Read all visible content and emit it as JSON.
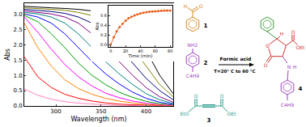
{
  "chart_data": [
    {
      "type": "line",
      "x_label": "Wavelength (nm)",
      "y_label": "Abs",
      "x": [
        265,
        280,
        295,
        310,
        325,
        340,
        355,
        370,
        385,
        400,
        415,
        430
      ],
      "series": [
        {
          "color": "#000000",
          "values": [
            3.25,
            3.22,
            3.2,
            3.18,
            3.15,
            3.1,
            3.0,
            2.8,
            2.4,
            1.8,
            1.0,
            0.4
          ]
        },
        {
          "color": "#808000",
          "values": [
            3.2,
            3.18,
            3.15,
            3.12,
            3.05,
            2.95,
            2.75,
            2.4,
            1.9,
            1.3,
            0.7,
            0.3
          ]
        },
        {
          "color": "#000080",
          "values": [
            3.15,
            3.12,
            3.08,
            3.02,
            2.9,
            2.7,
            2.35,
            1.9,
            1.4,
            0.9,
            0.5,
            0.2
          ]
        },
        {
          "color": "#800080",
          "values": [
            3.1,
            3.05,
            3.0,
            2.9,
            2.7,
            2.35,
            1.9,
            1.45,
            1.0,
            0.6,
            0.3,
            0.12
          ]
        },
        {
          "color": "#008080",
          "values": [
            3.05,
            3.0,
            2.9,
            2.7,
            2.35,
            1.9,
            1.45,
            1.05,
            0.7,
            0.4,
            0.2,
            0.08
          ]
        },
        {
          "color": "#0000ff",
          "values": [
            3.0,
            2.9,
            2.7,
            2.35,
            1.9,
            1.45,
            1.05,
            0.72,
            0.45,
            0.25,
            0.12,
            0.05
          ]
        },
        {
          "color": "#00a000",
          "values": [
            2.95,
            2.75,
            2.35,
            1.9,
            1.4,
            1.0,
            0.7,
            0.45,
            0.28,
            0.15,
            0.07,
            0.03
          ]
        },
        {
          "color": "#ff00ff",
          "values": [
            2.9,
            2.4,
            1.85,
            1.35,
            0.95,
            0.65,
            0.42,
            0.27,
            0.16,
            0.09,
            0.04,
            0.02
          ]
        },
        {
          "color": "#ff8000",
          "values": [
            2.7,
            1.9,
            1.3,
            0.85,
            0.57,
            0.38,
            0.25,
            0.16,
            0.1,
            0.05,
            0.03,
            0.01
          ]
        },
        {
          "color": "#ff0000",
          "values": [
            1.6,
            0.95,
            0.6,
            0.38,
            0.25,
            0.16,
            0.1,
            0.06,
            0.04,
            0.02,
            0.01,
            0.0
          ]
        },
        {
          "color": "#ff80c0",
          "values": [
            0.55,
            0.35,
            0.22,
            0.14,
            0.09,
            0.06,
            0.04,
            0.02,
            0.01,
            0.01,
            0.0,
            0.0
          ]
        }
      ],
      "xlim": [
        265,
        430
      ],
      "xticks": [
        300,
        350,
        400
      ],
      "ylim": [
        0,
        3.35
      ],
      "yticks": [
        {
          "value": 0,
          "label": "0.0"
        },
        {
          "value": 0.5,
          "label": "0.5"
        },
        {
          "value": 1,
          "label": "1.0"
        },
        {
          "value": 1.5,
          "label": "1.5"
        },
        {
          "value": 2,
          "label": "2.0"
        },
        {
          "value": 2.5,
          "label": "2.5"
        },
        {
          "value": 3,
          "label": "3.0"
        }
      ],
      "grid": false
    },
    {
      "type": "scatter",
      "x_label": "Time (min)",
      "y_label": "Abs",
      "x": [
        0,
        4,
        8,
        12,
        16,
        20,
        24,
        28,
        32,
        36,
        40,
        44,
        48,
        52,
        56,
        60,
        64,
        68,
        72,
        76,
        80
      ],
      "series": [
        {
          "color": "#e8601c",
          "marker": "circle",
          "line_style": "solid",
          "values": [
            0.0,
            0.15,
            0.27,
            0.36,
            0.43,
            0.49,
            0.54,
            0.57,
            0.6,
            0.62,
            0.64,
            0.655,
            0.665,
            0.675,
            0.68,
            0.685,
            0.69,
            0.695,
            0.7,
            0.7,
            0.7
          ]
        }
      ],
      "xlim": [
        -3,
        83
      ],
      "xticks": [
        0,
        20,
        40,
        60,
        80
      ],
      "ylim": [
        -0.05,
        0.8
      ],
      "yticks": [
        {
          "value": 0,
          "label": "0.0"
        },
        {
          "value": 0.2,
          "label": "0.2"
        },
        {
          "value": 0.4,
          "label": "0.4"
        },
        {
          "value": 0.6,
          "label": "0.6"
        }
      ],
      "grid": false
    }
  ],
  "scheme": {
    "compounds": [
      {
        "label": "1",
        "atoms": [
          "O",
          "H"
        ]
      },
      {
        "label": "2",
        "atoms": [
          "NH2",
          "C4H9"
        ]
      },
      {
        "label": "3",
        "atoms": [
          "O",
          "O",
          "EtO",
          "OEt"
        ]
      },
      {
        "label": "4",
        "atoms": [
          "H",
          "O",
          "O",
          "O",
          "OEt",
          "N",
          "H",
          "C4H9"
        ]
      }
    ],
    "reagent": "Formic acid",
    "conditions": "T=20° C to 60 °C"
  }
}
